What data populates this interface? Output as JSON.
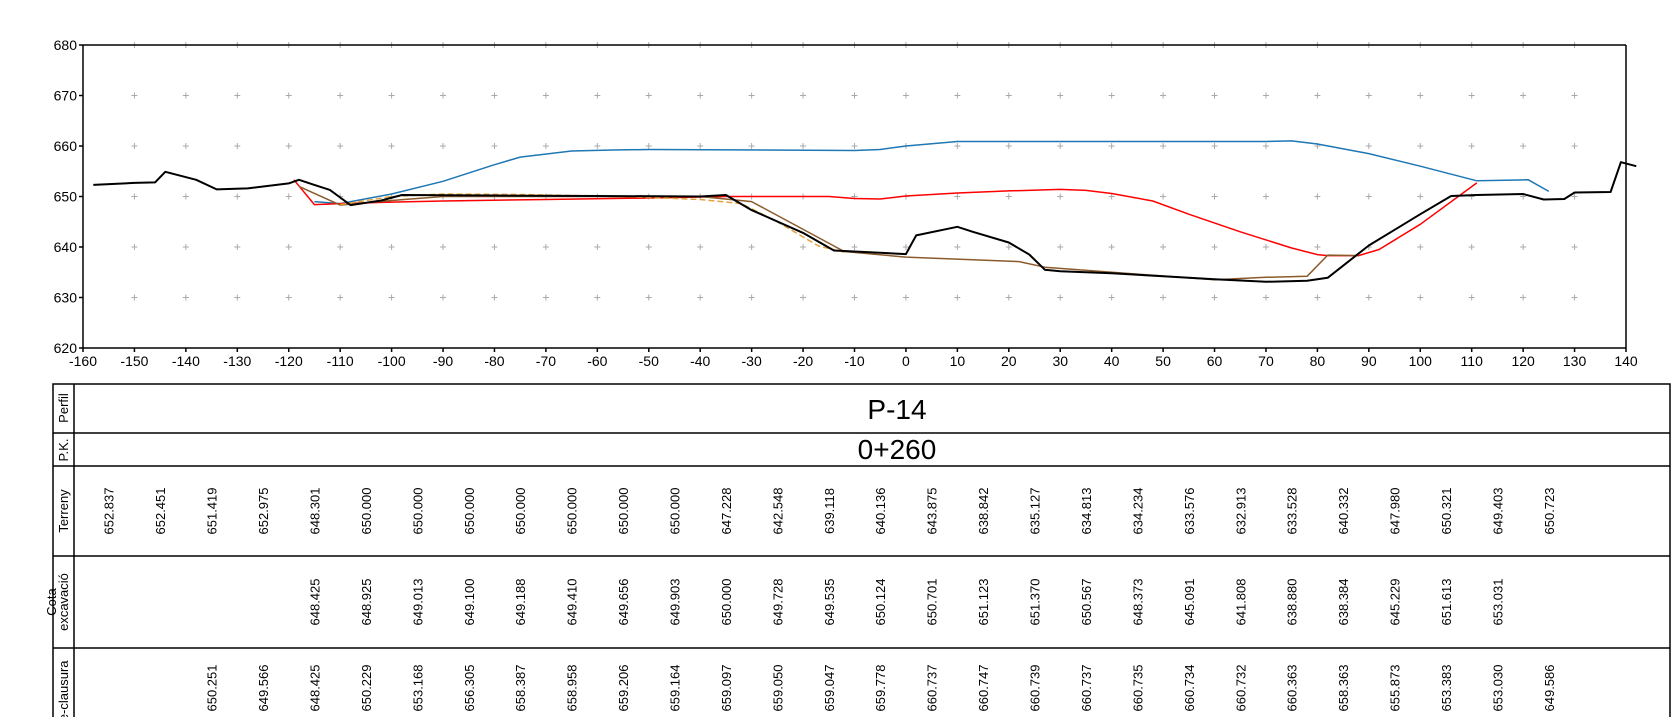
{
  "chart_data": {
    "type": "line",
    "xlim": [
      -160,
      140
    ],
    "ylim": [
      620,
      680
    ],
    "x_ticks": [
      "-160",
      "-150",
      "-140",
      "-130",
      "-120",
      "-110",
      "-100",
      "-90",
      "-80",
      "-70",
      "-60",
      "-50",
      "-40",
      "-30",
      "-20",
      "-10",
      "0",
      "10",
      "20",
      "30",
      "40",
      "50",
      "60",
      "70",
      "80",
      "90",
      "100",
      "110",
      "120",
      "130",
      "140"
    ],
    "y_ticks": [
      "620",
      "630",
      "640",
      "650",
      "660",
      "670",
      "680"
    ],
    "grid": "cross markers at every 10 units",
    "series": [
      {
        "color": "#1f77b4",
        "points": [
          [
            -115,
            649
          ],
          [
            -110,
            648.6
          ],
          [
            -100,
            650.5
          ],
          [
            -90,
            653
          ],
          [
            -80,
            656.3
          ],
          [
            -75,
            657.8
          ],
          [
            -65,
            659
          ],
          [
            -57,
            659.2
          ],
          [
            -50,
            659.3
          ],
          [
            -10,
            659.1
          ],
          [
            -5,
            659.3
          ],
          [
            0,
            660
          ],
          [
            10,
            660.9
          ],
          [
            70,
            660.9
          ],
          [
            75,
            661
          ],
          [
            80,
            660.4
          ],
          [
            90,
            658.5
          ],
          [
            100,
            656
          ],
          [
            111,
            653.1
          ],
          [
            121,
            653.3
          ],
          [
            125,
            651
          ]
        ]
      },
      {
        "color": "#ff0000",
        "points": [
          [
            -119,
            653.3
          ],
          [
            -115,
            648.4
          ],
          [
            -110,
            648.6
          ],
          [
            -100,
            648.9
          ],
          [
            -90,
            649.1
          ],
          [
            -70,
            649.4
          ],
          [
            -50,
            649.7
          ],
          [
            -35,
            650
          ],
          [
            -15,
            650
          ],
          [
            -10,
            649.6
          ],
          [
            -5,
            649.5
          ],
          [
            0,
            650.1
          ],
          [
            10,
            650.7
          ],
          [
            20,
            651.1
          ],
          [
            30,
            651.4
          ],
          [
            35,
            651.2
          ],
          [
            40,
            650.6
          ],
          [
            48,
            649.1
          ],
          [
            55,
            646.5
          ],
          [
            65,
            643
          ],
          [
            75,
            639.8
          ],
          [
            80,
            638.5
          ],
          [
            82,
            638.3
          ],
          [
            88,
            638.3
          ],
          [
            92,
            639.5
          ],
          [
            100,
            644.5
          ],
          [
            111,
            652.7
          ]
        ]
      },
      {
        "color": "#8b5a2b",
        "points": [
          [
            -118,
            652
          ],
          [
            -110,
            648.3
          ],
          [
            -100,
            649.2
          ],
          [
            -90,
            650
          ],
          [
            -60,
            650
          ],
          [
            -40,
            650
          ],
          [
            -30,
            649
          ],
          [
            -12,
            639.1
          ],
          [
            0,
            638
          ],
          [
            22,
            637.1
          ],
          [
            27,
            636
          ],
          [
            60,
            633.5
          ],
          [
            70,
            634
          ],
          [
            78,
            634.2
          ],
          [
            82,
            638.4
          ],
          [
            88,
            638.3
          ]
        ]
      },
      {
        "color": "#e6a23c",
        "dash": "6,3",
        "points": [
          [
            -110,
            648.4
          ],
          [
            -100,
            650
          ],
          [
            -90,
            650.5
          ],
          [
            -75,
            650.4
          ],
          [
            -55,
            650
          ],
          [
            -40,
            649.4
          ],
          [
            -32,
            648.6
          ],
          [
            -25,
            645
          ],
          [
            -17,
            640.2
          ],
          [
            -12,
            639
          ]
        ]
      },
      {
        "color": "#000000",
        "points": [
          [
            -158,
            652.3
          ],
          [
            -150,
            652.7
          ],
          [
            -146,
            652.8
          ],
          [
            -144,
            654.9
          ],
          [
            -138,
            653.3
          ],
          [
            -134,
            651.4
          ],
          [
            -128,
            651.6
          ],
          [
            -120,
            652.6
          ],
          [
            -118,
            653.3
          ],
          [
            -115,
            652.3
          ],
          [
            -112,
            651.3
          ],
          [
            -110,
            649.8
          ],
          [
            -108,
            648.3
          ],
          [
            -102,
            649.2
          ],
          [
            -98,
            650.3
          ],
          [
            -80,
            650.2
          ],
          [
            -60,
            650.1
          ],
          [
            -40,
            650
          ],
          [
            -35,
            650.3
          ],
          [
            -30,
            647.3
          ],
          [
            -20,
            642.8
          ],
          [
            -14,
            639.3
          ],
          [
            -10,
            639.1
          ],
          [
            0,
            638.6
          ],
          [
            2,
            642.3
          ],
          [
            10,
            644
          ],
          [
            13,
            643
          ],
          [
            20,
            640.9
          ],
          [
            24,
            638.5
          ],
          [
            27,
            635.5
          ],
          [
            30,
            635.2
          ],
          [
            40,
            634.8
          ],
          [
            50,
            634.2
          ],
          [
            60,
            633.6
          ],
          [
            70,
            633.1
          ],
          [
            78,
            633.3
          ],
          [
            82,
            633.9
          ],
          [
            90,
            640.3
          ],
          [
            100,
            646.5
          ],
          [
            106,
            650.1
          ],
          [
            111,
            650.3
          ],
          [
            120,
            650.5
          ],
          [
            124,
            649.4
          ],
          [
            128,
            649.5
          ],
          [
            130,
            650.8
          ],
          [
            137,
            650.9
          ],
          [
            139,
            656.8
          ],
          [
            142,
            656
          ]
        ]
      }
    ]
  },
  "table": {
    "row_labels": {
      "perfil": "Perfil",
      "pk": "P.K.",
      "terreny": "Terreny",
      "cota_1": "Cota",
      "cota_2": "excavació",
      "clausura": "re-clausura"
    },
    "profile_name": "P-14",
    "pk_value": "0+260",
    "terreny": [
      "652.837",
      "652.451",
      "651.419",
      "652.975",
      "648.301",
      "650.000",
      "650.000",
      "650.000",
      "650.000",
      "650.000",
      "650.000",
      "650.000",
      "647.228",
      "642.548",
      "639.118",
      "640.136",
      "643.875",
      "638.842",
      "635.127",
      "634.813",
      "634.234",
      "633.576",
      "632.913",
      "633.528",
      "640.332",
      "647.980",
      "650.321",
      "649.403",
      "650.723"
    ],
    "terreny_x": [
      -155,
      -145,
      -135,
      -125,
      -115,
      -105,
      -95,
      -85,
      -75,
      -65,
      -55,
      -45,
      -35,
      -25,
      -15,
      -5,
      5,
      15,
      25,
      35,
      45,
      55,
      65,
      75,
      85,
      95,
      105,
      115,
      125
    ],
    "cota_excavacio": [
      "648.425",
      "648.925",
      "649.013",
      "649.100",
      "649.188",
      "649.410",
      "649.656",
      "649.903",
      "650.000",
      "649.728",
      "649.535",
      "650.124",
      "650.701",
      "651.123",
      "651.370",
      "650.567",
      "648.373",
      "645.091",
      "641.808",
      "638.880",
      "638.384",
      "645.229",
      "651.613",
      "653.031"
    ],
    "cota_excavacio_x": [
      -115,
      -105,
      -95,
      -85,
      -75,
      -65,
      -55,
      -45,
      -35,
      -25,
      -15,
      -5,
      5,
      15,
      25,
      35,
      45,
      55,
      65,
      75,
      85,
      95,
      105,
      115
    ],
    "post_clausura": [
      "650.251",
      "649.566",
      "648.425",
      "650.229",
      "653.168",
      "656.305",
      "658.387",
      "658.958",
      "659.206",
      "659.164",
      "659.097",
      "659.050",
      "659.047",
      "659.778",
      "660.737",
      "660.747",
      "660.739",
      "660.737",
      "660.735",
      "660.734",
      "660.732",
      "660.363",
      "658.363",
      "655.873",
      "653.383",
      "653.030",
      "649.586"
    ],
    "post_clausura_x": [
      -135,
      -125,
      -115,
      -105,
      -95,
      -85,
      -75,
      -65,
      -55,
      -45,
      -35,
      -25,
      -15,
      -5,
      5,
      15,
      25,
      35,
      45,
      55,
      65,
      75,
      85,
      95,
      105,
      115,
      125
    ]
  }
}
